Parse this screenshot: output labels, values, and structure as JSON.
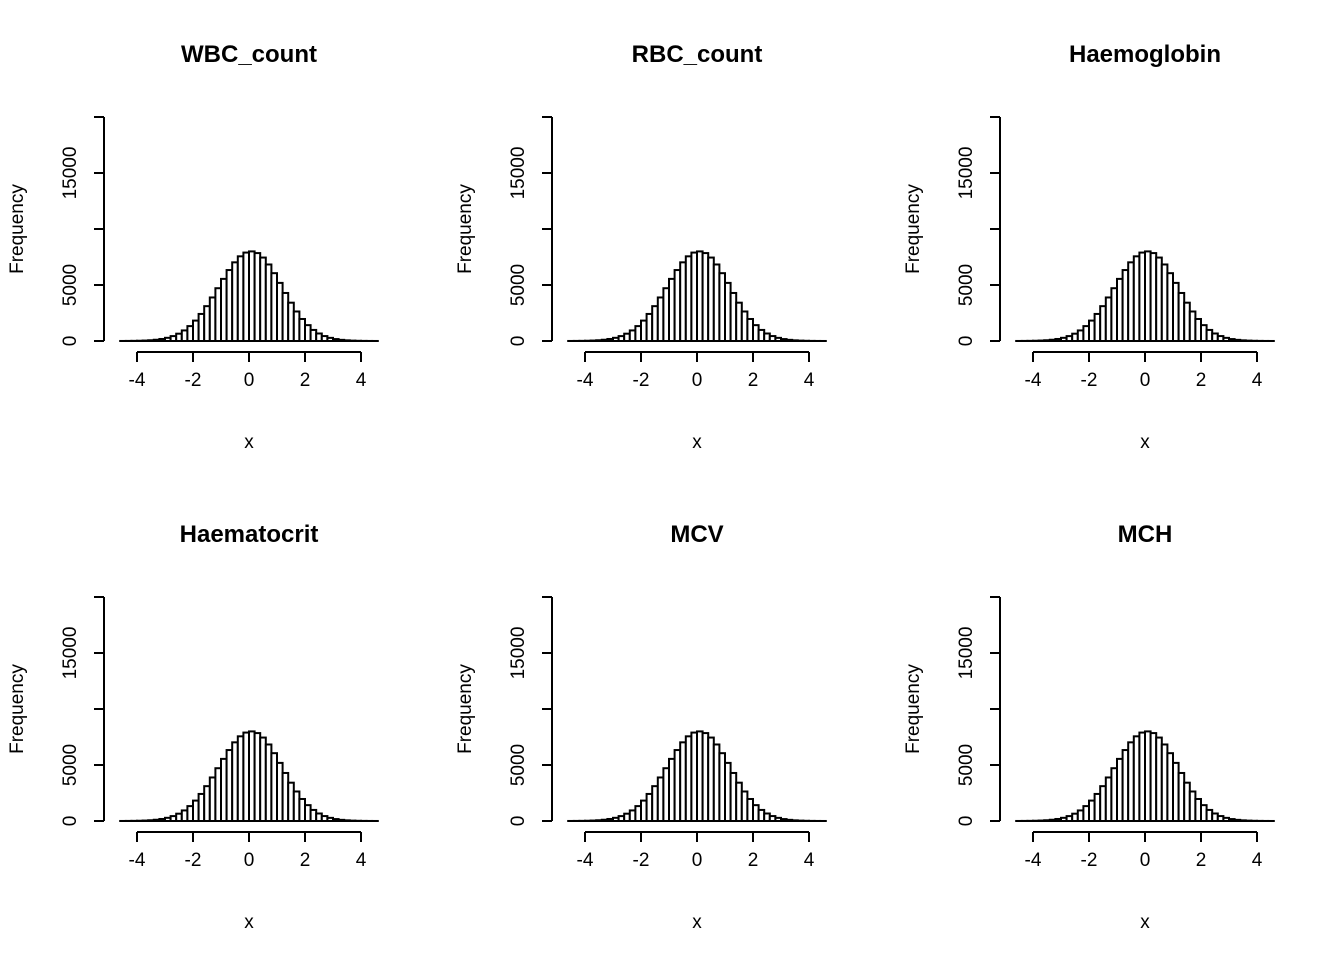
{
  "chart_data": [
    {
      "type": "bar",
      "title": "WBC_count",
      "xlabel": "x",
      "ylabel": "Frequency",
      "xlim": [
        -4.8,
        4.8
      ],
      "ylim": [
        0,
        20000
      ],
      "xticks": [
        "-4",
        "-2",
        "0",
        "2",
        "4"
      ],
      "yticks": [
        "0",
        "5000",
        "15000"
      ],
      "bin_width": 0.2,
      "bin_start": -4.6,
      "values": [
        3,
        7,
        13,
        23,
        40,
        67,
        111,
        180,
        284,
        437,
        653,
        944,
        1330,
        1822,
        2416,
        3111,
        3887,
        4713,
        5546,
        6335,
        7024,
        7560,
        7896,
        8000,
        7850,
        7450,
        6832,
        6056,
        5188,
        4288,
        3421,
        2635,
        1965,
        1416,
        988,
        670,
        440,
        280,
        172,
        102,
        59,
        33,
        18,
        9,
        4,
        2
      ]
    },
    {
      "type": "bar",
      "title": "RBC_count",
      "xlabel": "x",
      "ylabel": "Frequency",
      "xlim": [
        -4.8,
        4.8
      ],
      "ylim": [
        0,
        20000
      ],
      "xticks": [
        "-4",
        "-2",
        "0",
        "2",
        "4"
      ],
      "yticks": [
        "0",
        "5000",
        "15000"
      ],
      "bin_width": 0.2,
      "bin_start": -4.6,
      "values": [
        3,
        7,
        13,
        23,
        40,
        67,
        111,
        180,
        284,
        437,
        653,
        944,
        1330,
        1822,
        2416,
        3111,
        3887,
        4713,
        5546,
        6335,
        7024,
        7560,
        7896,
        8000,
        7850,
        7450,
        6832,
        6056,
        5188,
        4288,
        3421,
        2635,
        1965,
        1416,
        988,
        670,
        440,
        280,
        172,
        102,
        59,
        33,
        18,
        9,
        4,
        2
      ]
    },
    {
      "type": "bar",
      "title": "Haemoglobin",
      "xlabel": "x",
      "ylabel": "Frequency",
      "xlim": [
        -4.8,
        4.8
      ],
      "ylim": [
        0,
        20000
      ],
      "xticks": [
        "-4",
        "-2",
        "0",
        "2",
        "4"
      ],
      "yticks": [
        "0",
        "5000",
        "15000"
      ],
      "bin_width": 0.2,
      "bin_start": -4.6,
      "values": [
        3,
        7,
        13,
        23,
        40,
        67,
        111,
        180,
        284,
        437,
        653,
        944,
        1330,
        1822,
        2416,
        3111,
        3887,
        4713,
        5546,
        6335,
        7024,
        7560,
        7896,
        8000,
        7850,
        7450,
        6832,
        6056,
        5188,
        4288,
        3421,
        2635,
        1965,
        1416,
        988,
        670,
        440,
        280,
        172,
        102,
        59,
        33,
        18,
        9,
        4,
        2
      ]
    },
    {
      "type": "bar",
      "title": "Haematocrit",
      "xlabel": "x",
      "ylabel": "Frequency",
      "xlim": [
        -4.8,
        4.8
      ],
      "ylim": [
        0,
        20000
      ],
      "xticks": [
        "-4",
        "-2",
        "0",
        "2",
        "4"
      ],
      "yticks": [
        "0",
        "5000",
        "15000"
      ],
      "bin_width": 0.2,
      "bin_start": -4.6,
      "values": [
        3,
        7,
        13,
        23,
        40,
        67,
        111,
        180,
        284,
        437,
        653,
        944,
        1330,
        1822,
        2416,
        3111,
        3887,
        4713,
        5546,
        6335,
        7024,
        7560,
        7896,
        8000,
        7850,
        7450,
        6832,
        6056,
        5188,
        4288,
        3421,
        2635,
        1965,
        1416,
        988,
        670,
        440,
        280,
        172,
        102,
        59,
        33,
        18,
        9,
        4,
        2
      ]
    },
    {
      "type": "bar",
      "title": "MCV",
      "xlabel": "x",
      "ylabel": "Frequency",
      "xlim": [
        -4.8,
        4.8
      ],
      "ylim": [
        0,
        20000
      ],
      "xticks": [
        "-4",
        "-2",
        "0",
        "2",
        "4"
      ],
      "yticks": [
        "0",
        "5000",
        "15000"
      ],
      "bin_width": 0.2,
      "bin_start": -4.6,
      "values": [
        3,
        7,
        13,
        23,
        40,
        67,
        111,
        180,
        284,
        437,
        653,
        944,
        1330,
        1822,
        2416,
        3111,
        3887,
        4713,
        5546,
        6335,
        7024,
        7560,
        7896,
        8000,
        7850,
        7450,
        6832,
        6056,
        5188,
        4288,
        3421,
        2635,
        1965,
        1416,
        988,
        670,
        440,
        280,
        172,
        102,
        59,
        33,
        18,
        9,
        4,
        2
      ]
    },
    {
      "type": "bar",
      "title": "MCH",
      "xlabel": "x",
      "ylabel": "Frequency",
      "xlim": [
        -4.8,
        4.8
      ],
      "ylim": [
        0,
        20000
      ],
      "xticks": [
        "-4",
        "-2",
        "0",
        "2",
        "4"
      ],
      "yticks": [
        "0",
        "5000",
        "15000"
      ],
      "bin_width": 0.2,
      "bin_start": -4.6,
      "values": [
        3,
        7,
        13,
        23,
        40,
        67,
        111,
        180,
        284,
        437,
        653,
        944,
        1330,
        1822,
        2416,
        3111,
        3887,
        4713,
        5546,
        6335,
        7024,
        7560,
        7896,
        8000,
        7850,
        7450,
        6832,
        6056,
        5188,
        4288,
        3421,
        2635,
        1965,
        1416,
        988,
        670,
        440,
        280,
        172,
        102,
        59,
        33,
        18,
        9,
        4,
        2
      ]
    }
  ]
}
